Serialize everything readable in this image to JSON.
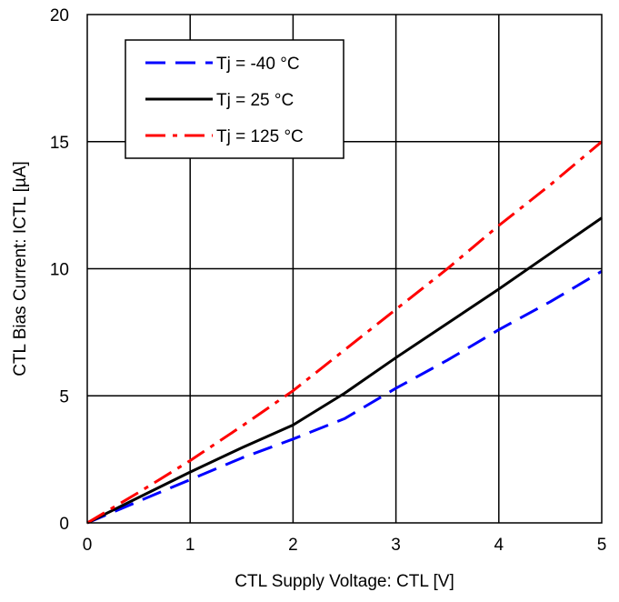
{
  "chart_data": {
    "type": "line",
    "title": "",
    "xlabel": "CTL Supply Voltage: CTL [V]",
    "ylabel": "CTL Bias Current: ICTL  [µA]",
    "xlim": [
      0,
      5
    ],
    "ylim": [
      0,
      20
    ],
    "xticks": [
      "0",
      "1",
      "2",
      "3",
      "4",
      "5"
    ],
    "yticks": [
      "0",
      "5",
      "10",
      "15",
      "20"
    ],
    "grid": true,
    "legend_position": "top-left",
    "series": [
      {
        "name": "Tj = -40 °C",
        "color": "#0000ff",
        "dash": "dashed",
        "x": [
          0,
          0.5,
          1,
          1.5,
          2,
          2.5,
          3,
          3.5,
          4,
          4.5,
          5
        ],
        "y": [
          0,
          0.85,
          1.7,
          2.55,
          3.3,
          4.1,
          5.3,
          6.4,
          7.6,
          8.7,
          9.9
        ]
      },
      {
        "name": "Tj = 25 °C",
        "color": "#000000",
        "dash": "solid",
        "x": [
          0,
          0.5,
          1,
          1.5,
          2,
          2.1,
          2.5,
          3,
          3.5,
          4,
          4.5,
          5
        ],
        "y": [
          0,
          1.0,
          2.0,
          2.95,
          3.85,
          4.1,
          5.1,
          6.5,
          7.85,
          9.2,
          10.6,
          12.0
        ]
      },
      {
        "name": "Tj = 125 °C",
        "color": "#ff0000",
        "dash": "dashdot",
        "x": [
          0,
          0.5,
          1,
          1.5,
          2,
          2.5,
          3,
          3.5,
          4,
          4.5,
          5
        ],
        "y": [
          0,
          1.2,
          2.45,
          3.8,
          5.2,
          6.8,
          8.4,
          10.0,
          11.7,
          13.3,
          15.0
        ]
      }
    ]
  }
}
